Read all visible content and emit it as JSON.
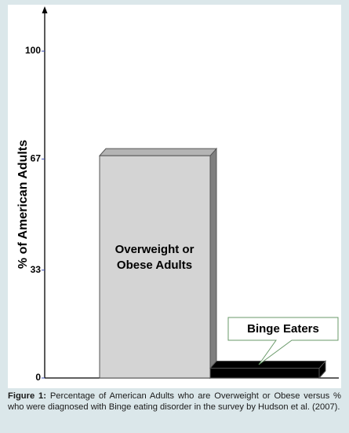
{
  "chart_data": {
    "type": "bar3d",
    "y_label": "% of American Adults",
    "categories": [
      "Overweight or Obese Adults",
      "Binge Eaters"
    ],
    "values": [
      68,
      3
    ],
    "colors": [
      "#d4d4d4",
      "#000000"
    ],
    "ylim": [
      0,
      113
    ],
    "yticks": [
      0,
      33,
      67,
      100
    ],
    "caption_label": "Figure 1:",
    "caption": "Percentage of American Adults who are Overweight or Obese versus % who were diagnosed with Binge eating disorder in the survey by Hudson et al. (2007)."
  }
}
